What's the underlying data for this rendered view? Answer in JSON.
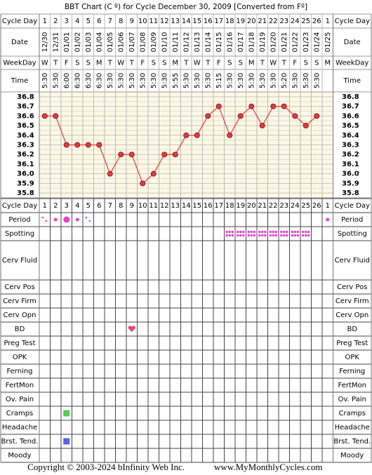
{
  "title": "BBT Chart (C º) for Cycle December 30, 2009  [Converted from Fº]",
  "top_labels": {
    "cycle_day": "Cycle Day",
    "date": "Date",
    "weekday": "WeekDay",
    "time": "Time"
  },
  "dates": [
    "12/30",
    "12/31",
    "01/01",
    "01/02",
    "01/03",
    "01/04",
    "01/05",
    "01/06",
    "01/07",
    "01/08",
    "01/09",
    "01/10",
    "01/11",
    "01/12",
    "01/13",
    "01/14",
    "01/15",
    "01/16",
    "01/17",
    "01/18",
    "01/19",
    "01/20",
    "01/21",
    "01/22",
    "01/23",
    "01/24",
    "01/25"
  ],
  "weekdays": [
    "W",
    "T",
    "F",
    "S",
    "S",
    "M",
    "T",
    "W",
    "T",
    "F",
    "S",
    "S",
    "M",
    "T",
    "W",
    "T",
    "F",
    "S",
    "S",
    "M",
    "T",
    "W",
    "T",
    "F",
    "S",
    "S",
    "M"
  ],
  "times": [
    "5:30",
    "5:30",
    "6:00",
    "6:30",
    "6:30",
    "6:30",
    "5:30",
    "5:30",
    "5:30",
    "5:30",
    "5:30",
    "5:30",
    "5:55",
    "5:30",
    "5:30",
    "5:30",
    "5:15",
    "5:30",
    "5:30",
    "5:30",
    "5:30",
    "5:30",
    "5:20",
    "5:30",
    "5:30",
    "5:30",
    null
  ],
  "chart_data": {
    "type": "line",
    "categories": [
      1,
      2,
      3,
      4,
      5,
      6,
      7,
      8,
      9,
      10,
      11,
      12,
      13,
      14,
      15,
      16,
      17,
      18,
      19,
      20,
      21,
      22,
      23,
      24,
      25,
      26,
      1
    ],
    "values": [
      36.6,
      36.6,
      36.3,
      36.3,
      36.3,
      36.3,
      36.0,
      36.2,
      36.2,
      35.9,
      36.0,
      36.2,
      36.2,
      36.4,
      36.4,
      36.6,
      36.7,
      36.4,
      36.6,
      36.7,
      36.5,
      36.7,
      36.7,
      36.6,
      36.5,
      36.6,
      null
    ],
    "color": "#e23b3b",
    "ylim": [
      35.75,
      36.85
    ],
    "yticks": [
      36.8,
      36.7,
      36.6,
      36.5,
      36.4,
      36.3,
      36.2,
      36.1,
      {
        "value": 36.0,
        "label": "36.0"
      },
      35.9,
      35.8
    ],
    "grid": true
  },
  "lower_labels": [
    "Cycle Day",
    "Period",
    "Spotting",
    "Cerv Fluid",
    "Cerv Pos",
    "Cerv Firm",
    "Cerv Opn",
    "BD",
    "Preg Test",
    "OPK",
    "Ferning",
    "FertMon",
    "Ov. Pain",
    "Cramps",
    "Headache",
    "Brst. Tend.",
    "Moody"
  ],
  "footer": {
    "copyright": "Copyright © 2003-2024 bInfinity Web Inc.",
    "site": "www.MyMonthlyCycles.com"
  }
}
